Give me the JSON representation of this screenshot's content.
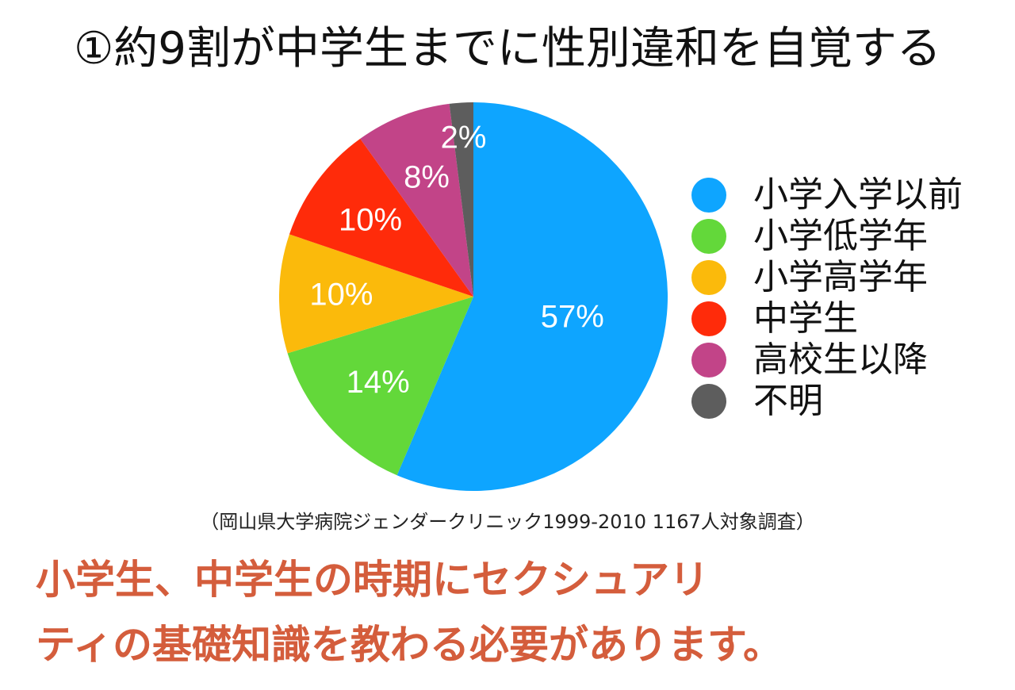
{
  "title": "①約9割が中学生までに性別違和を自覚する",
  "chart_data": {
    "type": "pie",
    "categories": [
      "小学入学以前",
      "小学低学年",
      "小学高学年",
      "中学生",
      "高校生以降",
      "不明"
    ],
    "values": [
      57,
      14,
      10,
      10,
      8,
      2
    ],
    "labels": [
      "57%",
      "14%",
      "10%",
      "10%",
      "8%",
      "2%"
    ],
    "colors": [
      "#0ea5ff",
      "#63d83a",
      "#fbba0b",
      "#ff2b0a",
      "#c24488",
      "#5d5d5d"
    ],
    "start": "12 o'clock",
    "direction": "clockwise",
    "legend": "right"
  },
  "source": "（岡山県大学病院ジェンダークリニック1999-2010 1167人対象調査）",
  "message": {
    "line1": "小学生、中学生の時期にセクシュアリ",
    "line2": "ティの基礎知識を教わる必要があります。"
  }
}
